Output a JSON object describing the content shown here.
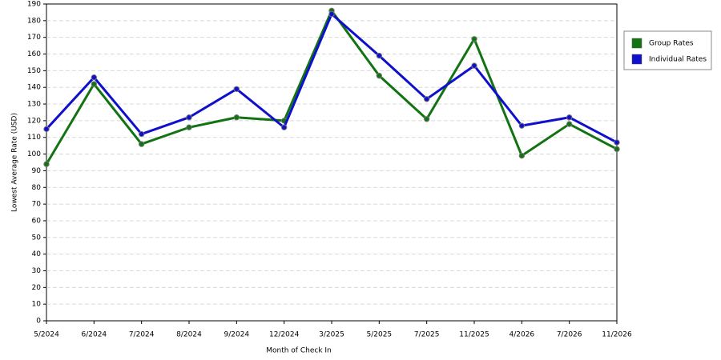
{
  "chart_data": {
    "type": "line",
    "x_label": "Month of Check In",
    "y_label": "Lowest Average Rate (USD)",
    "categories": [
      "5/2024",
      "6/2024",
      "7/2024",
      "8/2024",
      "9/2024",
      "12/2024",
      "3/2025",
      "5/2025",
      "7/2025",
      "11/2025",
      "4/2026",
      "7/2026",
      "11/2026"
    ],
    "series": [
      {
        "name": "Group Rates",
        "color": "#137313",
        "values": [
          94,
          142,
          106,
          116,
          122,
          120,
          186,
          147,
          121,
          169,
          99,
          118,
          103
        ]
      },
      {
        "name": "Individual Rates",
        "color": "#0f0fcc",
        "values": [
          115,
          146,
          112,
          122,
          139,
          116,
          184,
          159,
          133,
          153,
          117,
          122,
          107
        ]
      }
    ],
    "ylim": [
      0,
      190
    ],
    "yticks": [
      0,
      10,
      20,
      30,
      40,
      50,
      60,
      70,
      80,
      90,
      100,
      110,
      120,
      130,
      140,
      150,
      160,
      170,
      180,
      190
    ],
    "grid": true,
    "legend": "right"
  }
}
